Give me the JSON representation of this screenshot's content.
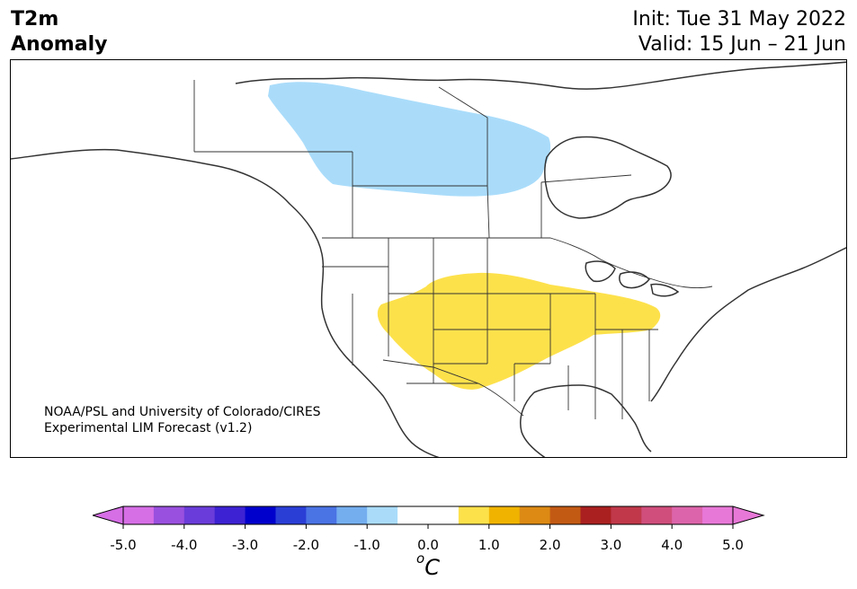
{
  "title": {
    "line1": "T2m",
    "line2": "Anomaly",
    "init": "Init: Tue 31 May 2022",
    "valid": "Valid: 15 Jun – 21 Jun"
  },
  "credit": {
    "line1": "NOAA/PSL and University of Colorado/CIRES",
    "line2": "Experimental LIM Forecast (v1.2)"
  },
  "map": {
    "region": "North America",
    "anomaly_areas": [
      {
        "name": "negative-anomaly-canada",
        "category": "-1.0 to -0.5",
        "color": "#aadcfa"
      },
      {
        "name": "positive-anomaly-us",
        "category": "0.5 to 1.0",
        "color": "#fde14b"
      }
    ],
    "lake_color": "#ffffff",
    "line_color": "#333333"
  },
  "colorbar": {
    "unit_symbol": "o",
    "unit_letter": "C",
    "colors": [
      "#d66ee6",
      "#9a50de",
      "#6a3cd9",
      "#3c22d2",
      "#0000cd",
      "#2a3ed6",
      "#4a73e4",
      "#74aeef",
      "#aadcfa",
      "#ffffff",
      "#ffffff",
      "#fde14b",
      "#f0b400",
      "#dc8a14",
      "#c35a14",
      "#aa2020",
      "#c0384a",
      "#d04e7c",
      "#dc64aa",
      "#e878d8"
    ],
    "ticks": [
      "-5.0",
      "-4.0",
      "-3.0",
      "-2.0",
      "-1.0",
      "0.0",
      "1.0",
      "2.0",
      "3.0",
      "4.0",
      "5.0"
    ],
    "extend_colors": {
      "low": "#d66ee6",
      "high": "#e878d8"
    }
  }
}
